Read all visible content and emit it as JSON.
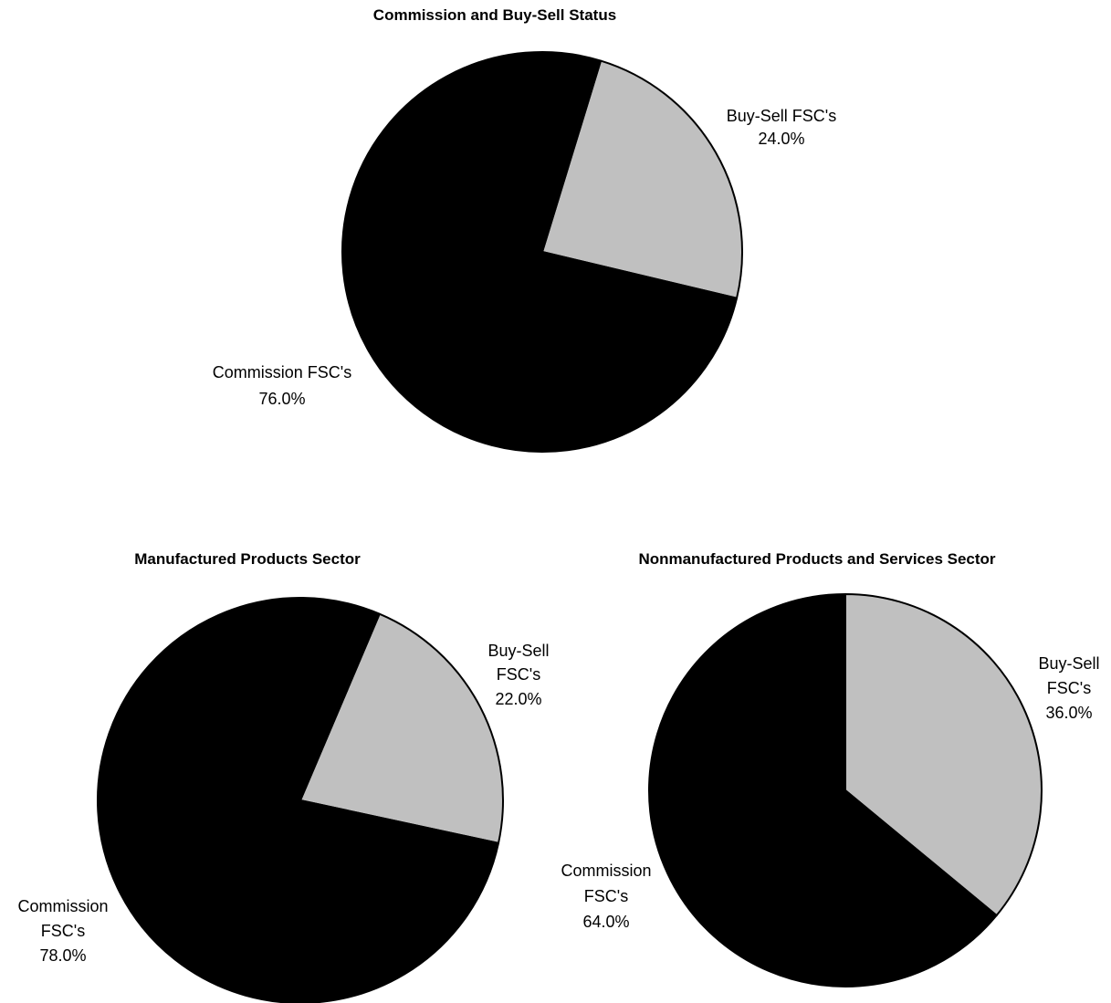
{
  "colors": {
    "commission": "#000000",
    "buy_sell": "#c0c0c0",
    "outline": "#000000",
    "background": "#ffffff"
  },
  "chart_data": [
    {
      "id": "overall",
      "type": "pie",
      "title": "Commission and Buy-Sell Status",
      "slices": [
        {
          "key": "buy_sell",
          "label": [
            "Buy-Sell FSC's"
          ],
          "value": 24.0,
          "percent_label": "24.0%"
        },
        {
          "key": "commission",
          "label": [
            "Commission FSC's"
          ],
          "value": 76.0,
          "percent_label": "76.0%"
        }
      ]
    },
    {
      "id": "manufactured",
      "type": "pie",
      "title": "Manufactured Products Sector",
      "slices": [
        {
          "key": "buy_sell",
          "label": [
            "Buy-Sell",
            "FSC's"
          ],
          "value": 22.0,
          "percent_label": "22.0%"
        },
        {
          "key": "commission",
          "label": [
            "Commission",
            "FSC's"
          ],
          "value": 78.0,
          "percent_label": "78.0%"
        }
      ]
    },
    {
      "id": "nonmanufactured",
      "type": "pie",
      "title": "Nonmanufactured Products and Services Sector",
      "slices": [
        {
          "key": "buy_sell",
          "label": [
            "Buy-Sell",
            "FSC's"
          ],
          "value": 36.0,
          "percent_label": "36.0%"
        },
        {
          "key": "commission",
          "label": [
            "Commission",
            "FSC's"
          ],
          "value": 64.0,
          "percent_label": "64.0%"
        }
      ]
    }
  ]
}
